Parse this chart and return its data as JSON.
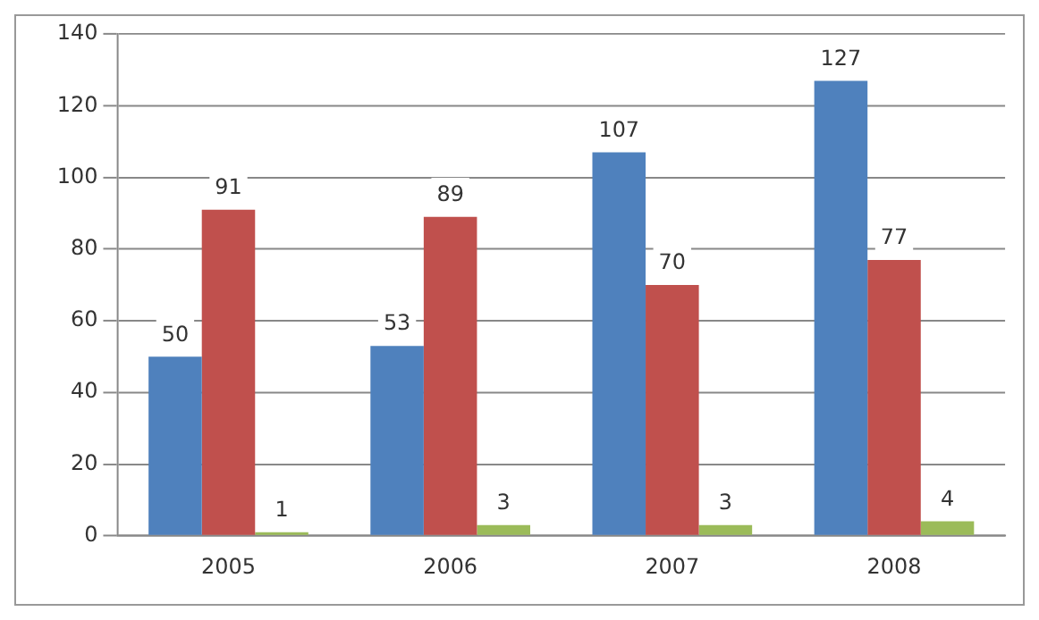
{
  "chart_data": {
    "type": "bar",
    "categories": [
      "2005",
      "2006",
      "2007",
      "2008"
    ],
    "series": [
      {
        "color": "#4f81bd",
        "values": [
          50,
          53,
          107,
          127
        ]
      },
      {
        "color": "#c0504d",
        "values": [
          91,
          89,
          70,
          77
        ]
      },
      {
        "color": "#9bbb59",
        "values": [
          1,
          3,
          3,
          4
        ]
      }
    ],
    "ylim": [
      0,
      140
    ],
    "yticks": [
      0,
      20,
      40,
      60,
      80,
      100,
      120,
      140
    ],
    "grid": "y",
    "data_labels": true,
    "legend": false
  }
}
